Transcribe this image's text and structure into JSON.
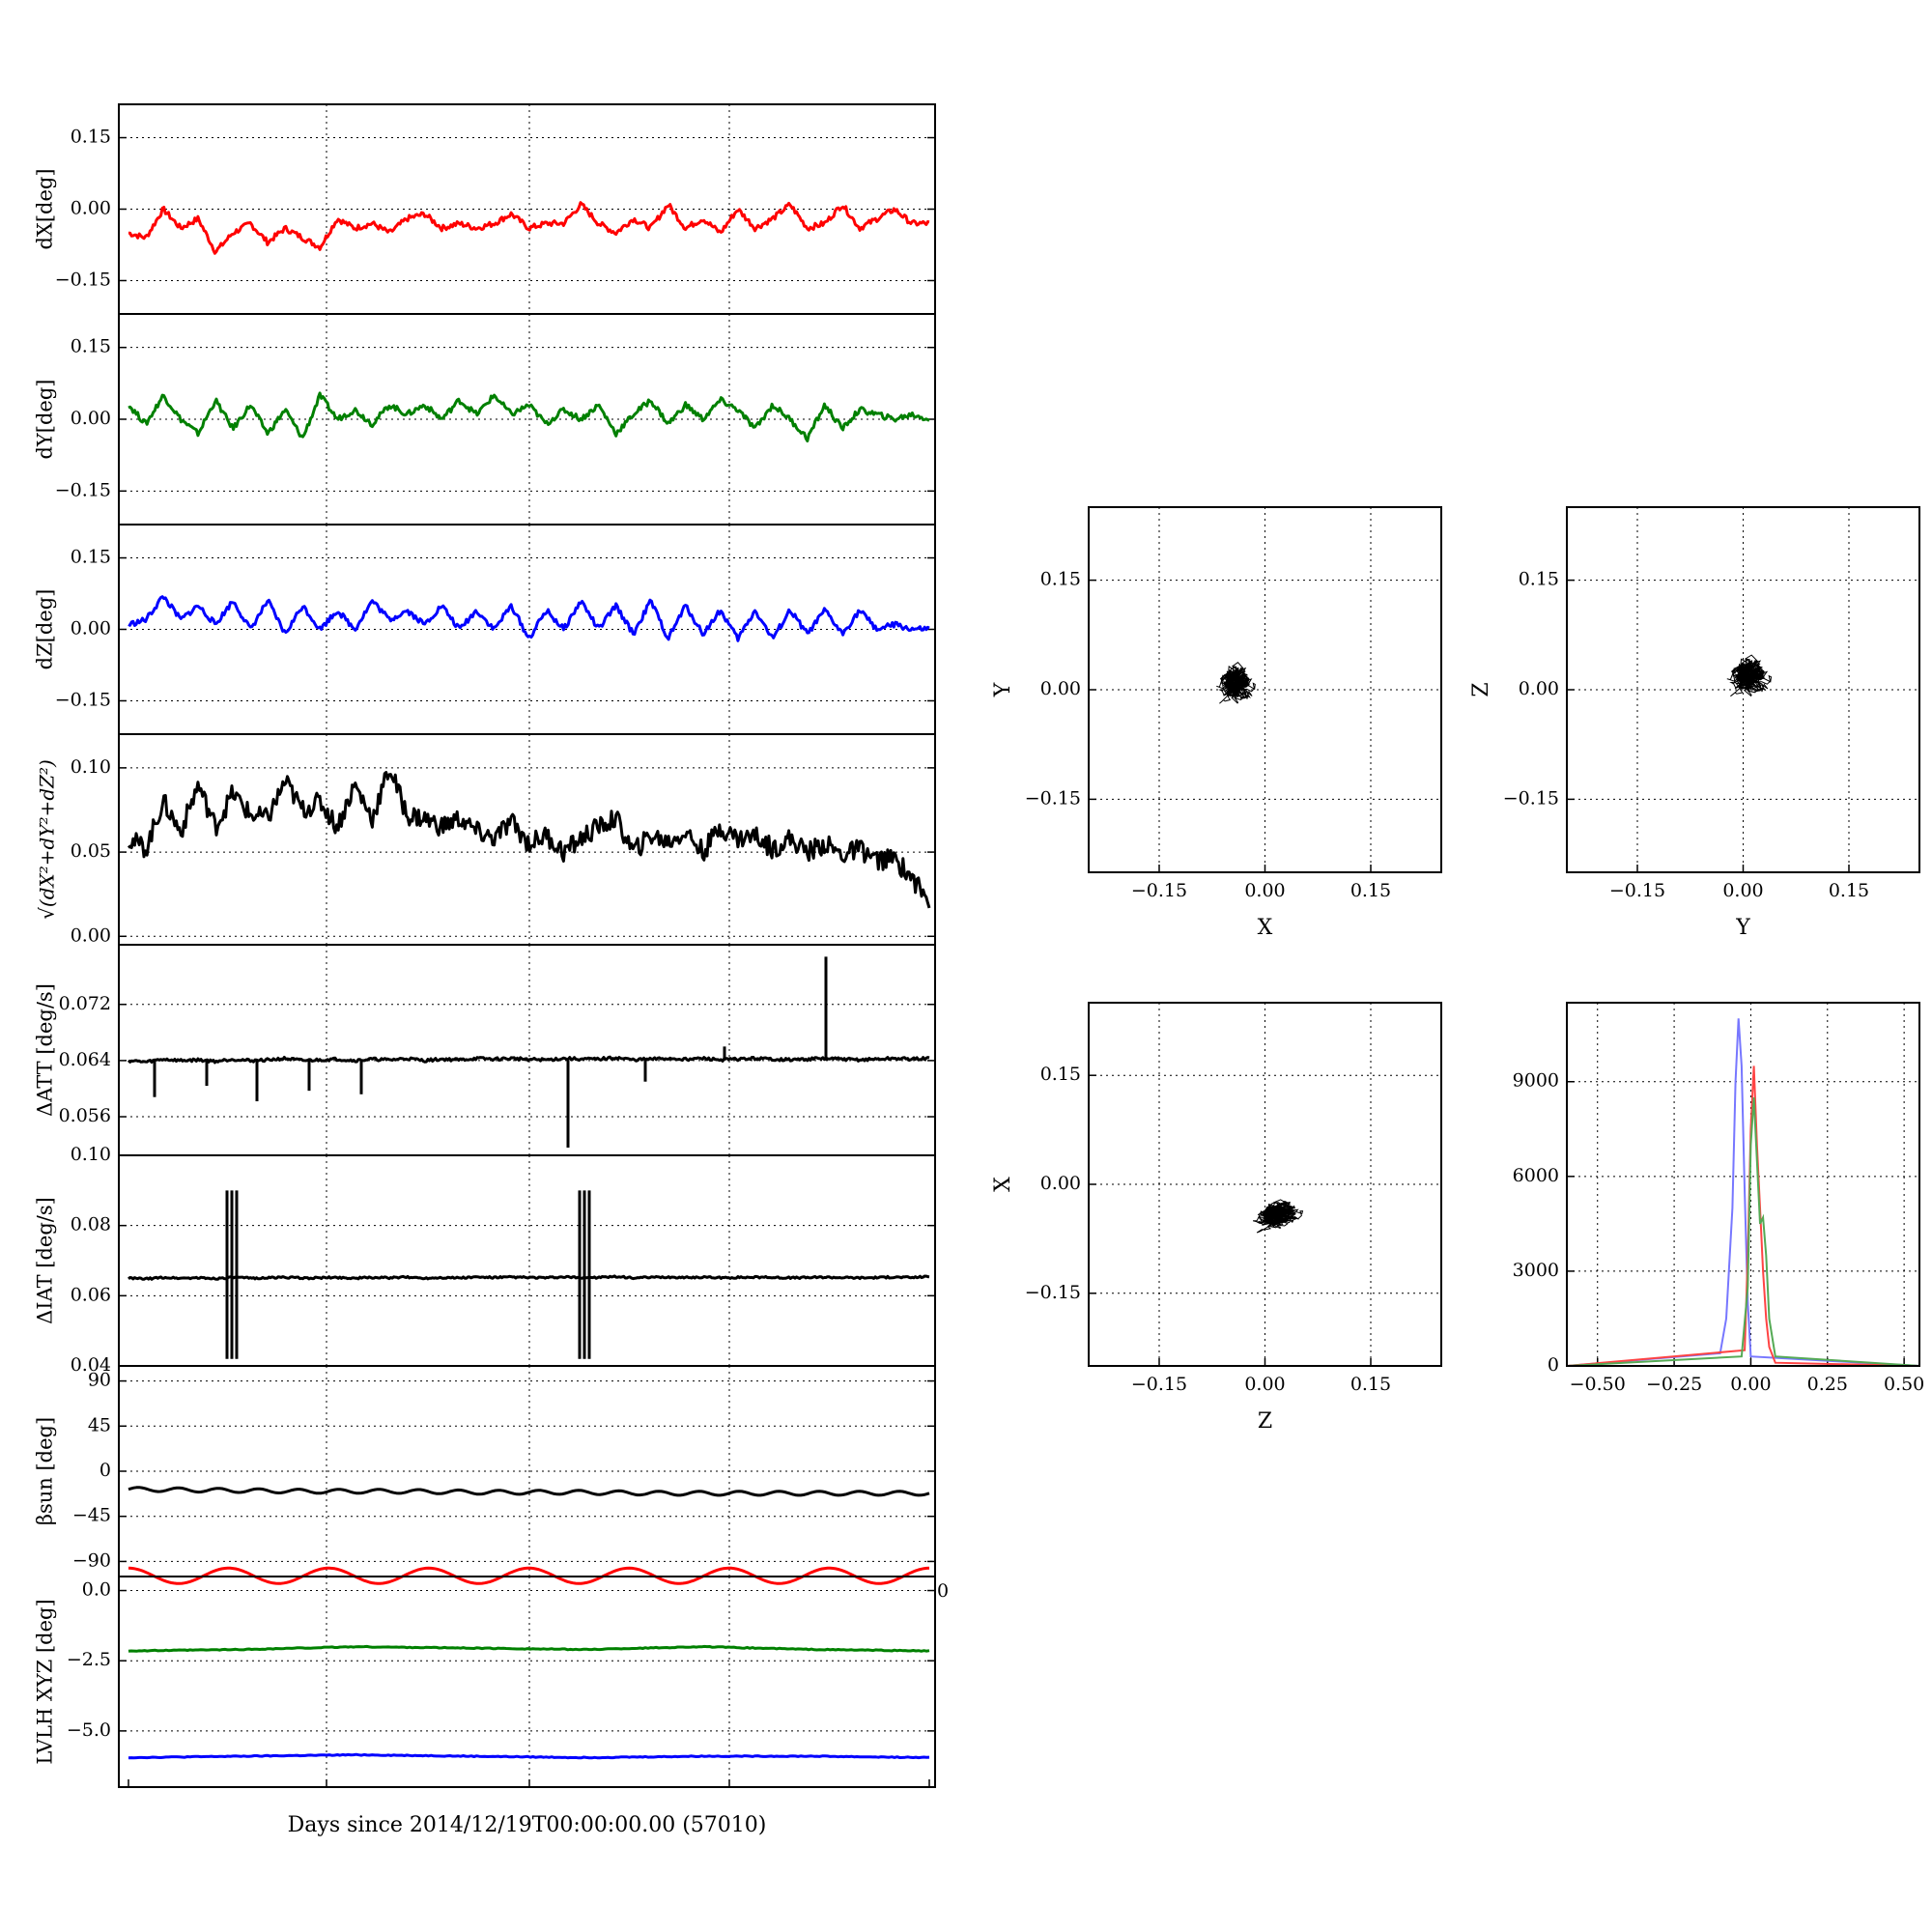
{
  "chart_data": [
    {
      "id": "dx",
      "type": "line",
      "ylabel": "dX[deg]",
      "yticks": [
        "0.15",
        "0.00",
        "−0.15"
      ],
      "ylim": [
        -0.22,
        0.22
      ],
      "grid": true,
      "series": [
        {
          "color": "#ff0000",
          "values": [
            -0.05,
            -0.06,
            0.0,
            -0.04,
            -0.02,
            -0.09,
            -0.05,
            -0.03,
            -0.07,
            -0.04,
            -0.06,
            -0.08,
            -0.02,
            -0.04,
            -0.03,
            -0.05,
            -0.02,
            -0.01,
            -0.04,
            -0.03,
            -0.04,
            -0.03,
            -0.01,
            -0.04,
            -0.03,
            -0.03,
            0.01,
            -0.03,
            -0.05,
            -0.02,
            -0.04,
            0.01,
            -0.04,
            -0.02,
            -0.05,
            0.0,
            -0.04,
            -0.02,
            0.01,
            -0.04,
            -0.03,
            0.01,
            -0.04,
            -0.02,
            0.0,
            -0.03,
            -0.03
          ]
        }
      ]
    },
    {
      "id": "dy",
      "type": "line",
      "ylabel": "dY[deg]",
      "yticks": [
        "0.15",
        "0.00",
        "−0.15"
      ],
      "ylim": [
        -0.22,
        0.22
      ],
      "grid": true,
      "series": [
        {
          "color": "#008000",
          "values": [
            0.03,
            -0.01,
            0.05,
            0.0,
            -0.03,
            0.04,
            -0.02,
            0.03,
            -0.03,
            0.02,
            -0.04,
            0.05,
            0.0,
            0.02,
            -0.01,
            0.03,
            0.01,
            0.03,
            0.0,
            0.04,
            0.01,
            0.05,
            0.01,
            0.03,
            -0.01,
            0.02,
            0.0,
            0.03,
            -0.03,
            0.01,
            0.04,
            -0.01,
            0.03,
            0.0,
            0.04,
            0.02,
            -0.02,
            0.03,
            0.0,
            -0.04,
            0.03,
            -0.02,
            0.02,
            0.01,
            0.0,
            0.01,
            0.0
          ]
        }
      ]
    },
    {
      "id": "dz",
      "type": "line",
      "ylabel": "dZ[deg]",
      "yticks": [
        "0.15",
        "0.00",
        "−0.15"
      ],
      "ylim": [
        -0.22,
        0.22
      ],
      "grid": true,
      "series": [
        {
          "color": "#0000ff",
          "values": [
            0.01,
            0.02,
            0.07,
            0.02,
            0.05,
            0.01,
            0.06,
            0.0,
            0.06,
            -0.01,
            0.05,
            0.0,
            0.04,
            0.0,
            0.06,
            0.02,
            0.04,
            0.01,
            0.05,
            0.0,
            0.04,
            0.0,
            0.05,
            -0.02,
            0.04,
            0.0,
            0.06,
            0.0,
            0.05,
            -0.01,
            0.06,
            -0.02,
            0.05,
            -0.01,
            0.04,
            -0.02,
            0.04,
            -0.02,
            0.04,
            -0.01,
            0.04,
            -0.01,
            0.04,
            0.0,
            0.01,
            0.0,
            0.0
          ]
        }
      ]
    },
    {
      "id": "mag",
      "type": "line",
      "ylabel": "√(dX²+dY²+dZ²)",
      "yticks": [
        "0.10",
        "0.05",
        "0.00"
      ],
      "ylim": [
        -0.005,
        0.12
      ],
      "grid": true,
      "series": [
        {
          "color": "#000000",
          "values": [
            0.058,
            0.052,
            0.08,
            0.062,
            0.09,
            0.065,
            0.085,
            0.072,
            0.07,
            0.092,
            0.075,
            0.08,
            0.065,
            0.09,
            0.07,
            0.1,
            0.072,
            0.07,
            0.065,
            0.07,
            0.062,
            0.058,
            0.068,
            0.055,
            0.06,
            0.05,
            0.058,
            0.065,
            0.07,
            0.05,
            0.06,
            0.056,
            0.062,
            0.05,
            0.065,
            0.058,
            0.06,
            0.052,
            0.058,
            0.05,
            0.055,
            0.048,
            0.052,
            0.045,
            0.046,
            0.035,
            0.02
          ]
        }
      ]
    },
    {
      "id": "datt",
      "type": "line",
      "ylabel": "ΔATT [deg/s]",
      "yticks": [
        "0.072",
        "0.064",
        "0.056"
      ],
      "ylim": [
        0.0505,
        0.0805
      ],
      "grid": true,
      "series": [
        {
          "color": "#000000",
          "baseline": 0.064,
          "values": [
            0.064,
            0.0638,
            0.0642,
            0.064,
            0.0641,
            0.0639,
            0.0642,
            0.064,
            0.0641,
            0.0643,
            0.064,
            0.0641,
            0.0642,
            0.064,
            0.0642,
            0.0641,
            0.0643,
            0.064,
            0.0642,
            0.0641,
            0.0643,
            0.0642,
            0.0643,
            0.0642,
            0.0641,
            0.0643,
            0.0642,
            0.0642,
            0.0644,
            0.0641,
            0.0642,
            0.0643,
            0.0642,
            0.0643,
            0.0641,
            0.0642,
            0.0643,
            0.0642,
            0.0641,
            0.0642,
            0.0643,
            0.0642,
            0.0641,
            0.0642,
            0.0643,
            0.0642,
            0.0643
          ]
        }
      ]
    },
    {
      "id": "diat",
      "type": "line",
      "ylabel": "ΔIAT [deg/s]",
      "yticks": [
        "0.10",
        "0.08",
        "0.06",
        "0.04"
      ],
      "ylim": [
        0.04,
        0.1
      ],
      "grid": true,
      "series": [
        {
          "color": "#000000",
          "baseline": 0.065,
          "values": [
            0.065,
            0.0648,
            0.0652,
            0.065,
            0.0651,
            0.0649,
            0.0652,
            0.065,
            0.0651,
            0.0653,
            0.065,
            0.0651,
            0.0652,
            0.065,
            0.0652,
            0.0651,
            0.0653,
            0.065,
            0.0652,
            0.0651,
            0.0653,
            0.0652,
            0.0653,
            0.0652,
            0.0651,
            0.0653,
            0.0652,
            0.0652,
            0.0654,
            0.0651,
            0.0652,
            0.0653,
            0.0652,
            0.0653,
            0.0651,
            0.0652,
            0.0653,
            0.0652,
            0.0651,
            0.0652,
            0.0653,
            0.0652,
            0.0651,
            0.0652,
            0.0653,
            0.0652,
            0.0655
          ]
        }
      ]
    },
    {
      "id": "beta",
      "type": "line",
      "ylabel": "βsun [deg]",
      "yticks": [
        "90",
        "45",
        "0",
        "−45",
        "−90"
      ],
      "ylim": [
        -105,
        105
      ],
      "grid": true,
      "series": [
        {
          "color": "#000000",
          "values": [
            -18,
            -19,
            -20,
            -20,
            -21,
            -21,
            -22,
            -22,
            -22,
            -22
          ]
        }
      ]
    },
    {
      "id": "lvlh",
      "type": "line",
      "ylabel": "LVLH XYZ [deg]",
      "yticks": [
        "0.0",
        "−2.5",
        "−5.0"
      ],
      "ylim": [
        -7.0,
        0.5
      ],
      "grid": true,
      "xlabel": "Days since 2014/12/19T00:00:00.00 (57010)",
      "series": [
        {
          "color": "#ff0000",
          "values": [
            0.8,
            0.25,
            0.8
          ]
        },
        {
          "color": "#008000",
          "values": [
            -2.15,
            -2.1,
            -2.0,
            -2.05,
            -2.1,
            -2.0,
            -2.1,
            -2.15
          ]
        },
        {
          "color": "#0000ff",
          "values": [
            -5.95,
            -5.9,
            -5.85,
            -5.9,
            -5.95,
            -5.9,
            -5.9,
            -5.95
          ]
        }
      ]
    },
    {
      "id": "sc_xy",
      "type": "scatter",
      "xlabel": "X",
      "ylabel": "Y",
      "ticks": [
        "−0.15",
        "0.00",
        "0.15"
      ],
      "xlim": [
        -0.25,
        0.25
      ],
      "ylim": [
        -0.25,
        0.25
      ],
      "grid": true,
      "center": [
        -0.04,
        0.01
      ],
      "spread": [
        0.035,
        0.035
      ]
    },
    {
      "id": "sc_yz",
      "type": "scatter",
      "xlabel": "Y",
      "ylabel": "Z",
      "ticks": [
        "−0.15",
        "0.00",
        "0.15"
      ],
      "xlim": [
        -0.25,
        0.25
      ],
      "ylim": [
        -0.25,
        0.25
      ],
      "grid": true,
      "center": [
        0.01,
        0.02
      ],
      "spread": [
        0.04,
        0.035
      ]
    },
    {
      "id": "sc_zx",
      "type": "scatter",
      "xlabel": "Z",
      "ylabel": "X",
      "ticks": [
        "−0.15",
        "0.00",
        "0.15"
      ],
      "xlim": [
        -0.25,
        0.25
      ],
      "ylim": [
        -0.25,
        0.25
      ],
      "grid": true,
      "center": [
        0.02,
        -0.04
      ],
      "spread": [
        0.045,
        0.025
      ]
    },
    {
      "id": "hist",
      "type": "histogram",
      "xticks": [
        "−0.50",
        "−0.25",
        "0.00",
        "0.25",
        "0.50"
      ],
      "yticks": [
        "9000",
        "6000",
        "3000",
        "0"
      ],
      "xlim": [
        -0.6,
        0.55
      ],
      "ylim": [
        0,
        11500
      ],
      "grid": true,
      "series": [
        {
          "color": "#7777ff",
          "centers": [
            -0.1,
            -0.08,
            -0.06,
            -0.05,
            -0.04,
            -0.03,
            -0.02,
            -0.01,
            0.0
          ],
          "counts": [
            400,
            1500,
            5000,
            9000,
            11000,
            9500,
            5500,
            2000,
            300
          ]
        },
        {
          "color": "#ff4444",
          "centers": [
            -0.02,
            -0.01,
            0.0,
            0.01,
            0.02,
            0.03,
            0.04,
            0.05,
            0.06,
            0.08
          ],
          "counts": [
            500,
            3500,
            7500,
            9500,
            7000,
            5000,
            3000,
            1500,
            600,
            100
          ]
        },
        {
          "color": "#55aa55",
          "centers": [
            -0.03,
            -0.01,
            0.0,
            0.01,
            0.02,
            0.03,
            0.04,
            0.05,
            0.06,
            0.08
          ],
          "counts": [
            300,
            2500,
            7000,
            8500,
            6500,
            4500,
            4700,
            3500,
            1500,
            300
          ]
        }
      ]
    }
  ]
}
